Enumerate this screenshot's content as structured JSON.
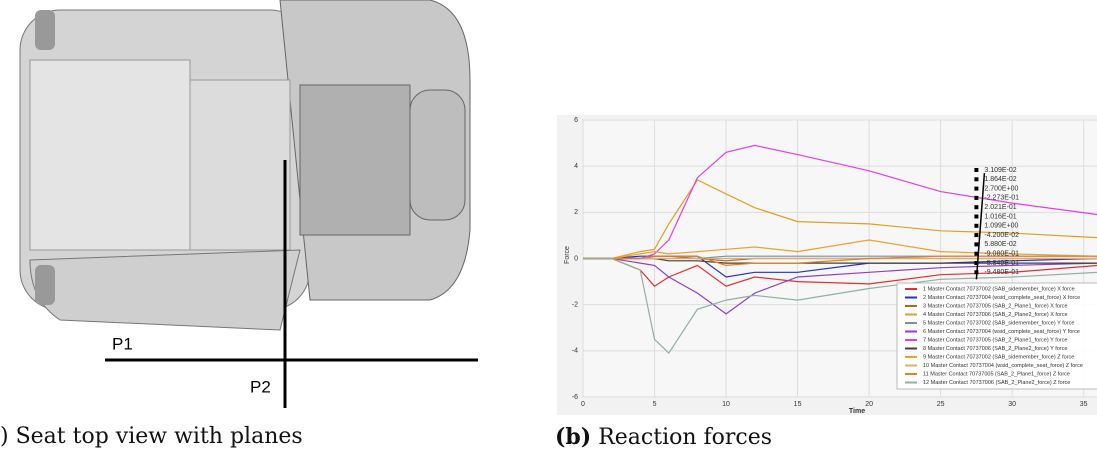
{
  "panel_a": {
    "labels": [
      "P1",
      "P2"
    ],
    "caption": ") Seat top view with planes"
  },
  "chart_data": {
    "type": "line",
    "caption_label": "(b)",
    "caption": "Reaction forces",
    "x_label": "Time",
    "y_label": "Force",
    "x": [
      0,
      2,
      4,
      5,
      6,
      8,
      10,
      12,
      15,
      20,
      25,
      30,
      36
    ],
    "xlim": [
      0,
      36
    ],
    "xticks": [
      0,
      5,
      10,
      15,
      20,
      25,
      30,
      35
    ],
    "ylim": [
      -6,
      6
    ],
    "yticks": [
      -6,
      -4,
      -2,
      0,
      2,
      4,
      6
    ],
    "grid": true,
    "legend": "lower right",
    "cursor_x": 27.5,
    "annotations": [
      "3.109E-02",
      "1.864E-02",
      "2.700E+00",
      "-2.273E-01",
      "2.021E-01",
      "1.016E-01",
      "1.099E+00",
      "-4.200E-02",
      "5.880E-02",
      "-9.080E-01",
      "-5.849E-01",
      "-9.480E-01"
    ],
    "series": [
      {
        "name": "1 Master Contact 70737002 (SAB_sidemember_force) X force",
        "color": "#e03030",
        "values": [
          0,
          0,
          -0.5,
          -1.2,
          -0.8,
          -0.3,
          -1.2,
          -0.8,
          -1.0,
          -1.1,
          -0.7,
          -0.6,
          -0.3
        ]
      },
      {
        "name": "2 Master Contact 70737004 (wsid_complete_seat_force) X force",
        "color": "#2030d0",
        "values": [
          0,
          0,
          0.1,
          0.1,
          0.1,
          0.1,
          -0.8,
          -0.6,
          -0.6,
          -0.2,
          -0.2,
          -0.1,
          0
        ]
      },
      {
        "name": "3 Master Contact 70737005 (SAB_2_Plane1_force) X force",
        "color": "#b06820",
        "values": [
          0,
          0,
          0,
          0.1,
          0.1,
          0,
          -0.1,
          0,
          0,
          0,
          0,
          0,
          0
        ]
      },
      {
        "name": "4 Master Contact 70737006 (SAB_2_Plane2_force) X force",
        "color": "#e0a020",
        "values": [
          0,
          0,
          0.3,
          0.4,
          1.5,
          3.4,
          2.8,
          2.2,
          1.6,
          1.5,
          1.2,
          1.1,
          0.9
        ]
      },
      {
        "name": "5 Master Contact 70737002 (SAB_sidemember_force) Y force",
        "color": "#7890a0",
        "values": [
          0,
          0,
          0,
          0,
          0,
          0,
          0.1,
          0.1,
          0.1,
          0.1,
          0.1,
          0.1,
          0.1
        ]
      },
      {
        "name": "6 Master Contact 70737004 (wsid_complete_seat_force) Y force",
        "color": "#9040c0",
        "values": [
          0,
          0,
          -0.2,
          -0.3,
          -0.8,
          -1.5,
          -2.4,
          -1.5,
          -0.8,
          -0.6,
          -0.4,
          -0.3,
          -0.2
        ]
      },
      {
        "name": "7 Master Contact 70737005 (SAB_2_Plane1_force) Y force",
        "color": "#e040e0",
        "values": [
          0,
          0,
          0,
          0.2,
          0.8,
          3.5,
          4.6,
          4.9,
          4.5,
          3.8,
          2.9,
          2.4,
          1.9
        ]
      },
      {
        "name": "8 Master Contact 70737006 (SAB_2_Plane2_force) Y force",
        "color": "#404040",
        "values": [
          0,
          0,
          0,
          0,
          -0.1,
          -0.1,
          -0.2,
          -0.2,
          -0.2,
          -0.2,
          -0.2,
          -0.2,
          -0.2
        ]
      },
      {
        "name": "9 Master Contact 70737002 (SAB_sidemember_force) Z force",
        "color": "#f0a030",
        "values": [
          0,
          0,
          0.2,
          0.3,
          0.2,
          0.3,
          0.4,
          0.5,
          0.3,
          0.8,
          0.3,
          0.2,
          0.1
        ]
      },
      {
        "name": "10 Master Contact 70737004 (wsid_complete_seat_force) Z force",
        "color": "#d8b070",
        "values": [
          0,
          0,
          0,
          0,
          0,
          0,
          0,
          0,
          0,
          0,
          0,
          0,
          0
        ]
      },
      {
        "name": "11 Master Contact 70737005 (SAB_2_Plane1_force) Z force",
        "color": "#e08030",
        "values": [
          0,
          0,
          0,
          0.1,
          0.1,
          0.1,
          -0.3,
          -0.2,
          -0.2,
          0,
          0.1,
          0.1,
          0.1
        ]
      },
      {
        "name": "12 Master Contact 70737006 (SAB_2_Plane2_force) Z force",
        "color": "#90b0a0",
        "values": [
          0,
          0,
          -0.5,
          -3.5,
          -4.1,
          -2.2,
          -1.8,
          -1.6,
          -1.8,
          -1.3,
          -0.9,
          -0.8,
          -0.6
        ]
      }
    ]
  }
}
